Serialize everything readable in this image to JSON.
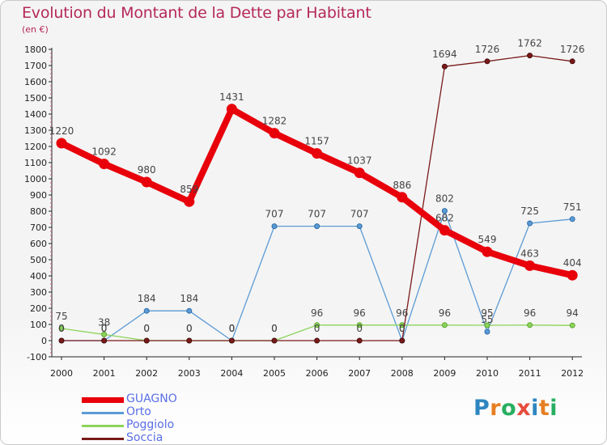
{
  "title": "Evolution du Montant de la Dette par Habitant",
  "unit": "(en €)",
  "logo_text": "Proxiti",
  "chart_data": {
    "type": "line",
    "title": "Evolution du Montant de la Dette par Habitant",
    "ylabel": "(en €)",
    "xlabel": "",
    "x": [
      "2000",
      "2001",
      "2002",
      "2003",
      "2004",
      "2005",
      "2006",
      "2007",
      "2008",
      "2009",
      "2010",
      "2011",
      "2012"
    ],
    "ylim": [
      -100,
      1800
    ],
    "yticks": [
      -100,
      0,
      100,
      200,
      300,
      400,
      500,
      600,
      700,
      800,
      900,
      1000,
      1100,
      1200,
      1300,
      1400,
      1500,
      1600,
      1700,
      1800
    ],
    "grid": false,
    "legend_position": "bottom-left",
    "series": [
      {
        "name": "GUAGNO",
        "color": "#e8000b",
        "values": [
          1220,
          1092,
          980,
          859,
          1431,
          1282,
          1157,
          1037,
          886,
          682,
          549,
          463,
          404
        ],
        "labels": [
          "1220",
          "1092",
          "980",
          "859",
          "1431",
          "1282",
          "1157",
          "1037",
          "886",
          "682",
          "549",
          "463",
          "404"
        ]
      },
      {
        "name": "Orto",
        "color": "#5b9bd5",
        "values": [
          0,
          0,
          184,
          184,
          0,
          707,
          707,
          707,
          0,
          802,
          55,
          725,
          751
        ],
        "labels": [
          "0",
          "0",
          "184",
          "184",
          "0",
          "707",
          "707",
          "707",
          "0",
          "802",
          "55",
          "725",
          "751"
        ]
      },
      {
        "name": "Poggiolo",
        "color": "#8cd45a",
        "values": [
          75,
          38,
          0,
          0,
          0,
          0,
          96,
          96,
          96,
          96,
          95,
          96,
          94
        ],
        "labels": [
          "75",
          "38",
          "0",
          "0",
          "0",
          "0",
          "96",
          "96",
          "96",
          "96",
          "95",
          "96",
          "94"
        ]
      },
      {
        "name": "Soccia",
        "color": "#7a1a1a",
        "values": [
          0,
          0,
          0,
          0,
          0,
          0,
          0,
          0,
          0,
          1694,
          1726,
          1762,
          1726
        ],
        "labels": [
          "0",
          "0",
          "0",
          "0",
          "0",
          "0",
          "0",
          "0",
          "0",
          "1694",
          "1726",
          "1762",
          "1726"
        ]
      }
    ]
  }
}
